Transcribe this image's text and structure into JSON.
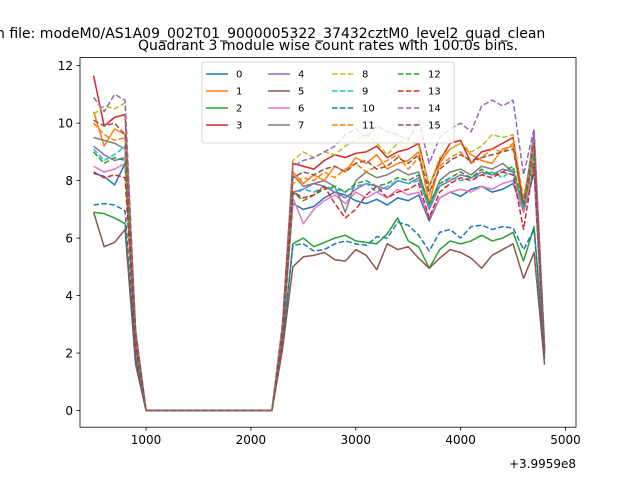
{
  "suptitle": "n file: modeM0/AS1A09_002T01_9000005322_37432cztM0_level2_quad_clean",
  "chart_data": {
    "type": "line",
    "title": "Quadrant 3 module wise count rates with 100.0s bins.",
    "xlabel": "",
    "ylabel": "",
    "x_offset_label": "+3.9959e8",
    "xlim": [
      370,
      5100
    ],
    "ylim": [
      -0.58,
      12.28
    ],
    "xticks": [
      1000,
      2000,
      3000,
      4000,
      5000
    ],
    "xtick_labels": [
      "1000",
      "2000",
      "3000",
      "4000",
      "5000"
    ],
    "yticks": [
      0,
      2,
      4,
      6,
      8,
      10,
      12
    ],
    "ytick_labels": [
      "0",
      "2",
      "4",
      "6",
      "8",
      "10",
      "12"
    ],
    "grid": false,
    "legend_position": "top-center",
    "legend_columns": 4,
    "x": [
      500,
      600,
      700,
      800,
      900,
      1000,
      1100,
      1200,
      1300,
      1400,
      1500,
      1600,
      1700,
      1800,
      1900,
      2000,
      2100,
      2200,
      2300,
      2400,
      2500,
      2600,
      2700,
      2800,
      2900,
      3000,
      3100,
      3200,
      3300,
      3400,
      3500,
      3600,
      3700,
      3800,
      3900,
      4000,
      4100,
      4200,
      4300,
      4400,
      4500,
      4600,
      4700,
      4800
    ],
    "series": [
      {
        "name": "0",
        "color": "#1f77b4",
        "dash": "solid",
        "values": [
          8.25,
          8.15,
          7.85,
          8.6,
          2.1,
          0,
          0,
          0,
          0,
          0,
          0,
          0,
          0,
          0,
          0,
          0,
          0,
          0,
          2.4,
          7.2,
          7.0,
          7.1,
          7.4,
          7.6,
          7.5,
          7.3,
          7.2,
          7.35,
          7.15,
          7.4,
          7.3,
          7.5,
          6.6,
          7.4,
          7.6,
          7.45,
          7.7,
          7.8,
          7.6,
          7.7,
          7.9,
          6.9,
          8.3,
          1.8
        ]
      },
      {
        "name": "1",
        "color": "#ff7f0e",
        "dash": "solid",
        "values": [
          10.4,
          9.2,
          9.8,
          9.6,
          2.6,
          0,
          0,
          0,
          0,
          0,
          0,
          0,
          0,
          0,
          0,
          0,
          0,
          0,
          2.8,
          8.3,
          7.9,
          8.2,
          8.0,
          8.5,
          8.3,
          8.8,
          8.6,
          8.9,
          8.4,
          8.6,
          8.7,
          9.0,
          7.2,
          8.6,
          9.1,
          9.3,
          8.9,
          8.7,
          8.6,
          9.1,
          9.2,
          7.0,
          9.1,
          2.0
        ]
      },
      {
        "name": "2",
        "color": "#2ca02c",
        "dash": "solid",
        "values": [
          6.9,
          6.85,
          6.7,
          6.5,
          1.8,
          0,
          0,
          0,
          0,
          0,
          0,
          0,
          0,
          0,
          0,
          0,
          0,
          0,
          2.2,
          5.8,
          6.0,
          5.7,
          5.85,
          6.0,
          6.1,
          5.9,
          5.85,
          5.8,
          6.15,
          6.7,
          5.9,
          5.7,
          4.95,
          5.6,
          5.9,
          5.8,
          5.9,
          6.1,
          5.9,
          6.0,
          6.2,
          5.2,
          6.4,
          1.9
        ]
      },
      {
        "name": "3",
        "color": "#d62728",
        "dash": "solid",
        "values": [
          11.65,
          9.9,
          10.2,
          10.3,
          2.8,
          0,
          0,
          0,
          0,
          0,
          0,
          0,
          0,
          0,
          0,
          0,
          0,
          0,
          2.9,
          8.6,
          8.5,
          8.4,
          8.7,
          8.9,
          8.8,
          8.95,
          9.0,
          9.2,
          8.8,
          9.0,
          9.1,
          9.3,
          7.8,
          8.7,
          9.3,
          9.4,
          8.6,
          9.0,
          9.1,
          9.3,
          9.5,
          7.1,
          9.6,
          2.2
        ]
      },
      {
        "name": "4",
        "color": "#9467bd",
        "dash": "solid",
        "values": [
          9.2,
          8.9,
          8.7,
          8.8,
          2.3,
          0,
          0,
          0,
          0,
          0,
          0,
          0,
          0,
          0,
          0,
          0,
          0,
          0,
          2.5,
          7.6,
          7.7,
          7.9,
          7.8,
          7.6,
          7.4,
          7.7,
          7.9,
          7.8,
          7.7,
          8.0,
          7.9,
          8.1,
          7.0,
          7.8,
          8.0,
          8.2,
          8.1,
          8.3,
          8.2,
          8.4,
          8.3,
          7.1,
          9.7,
          2.0
        ]
      },
      {
        "name": "5",
        "color": "#8c564b",
        "dash": "solid",
        "values": [
          6.9,
          5.7,
          5.85,
          6.3,
          1.6,
          0,
          0,
          0,
          0,
          0,
          0,
          0,
          0,
          0,
          0,
          0,
          0,
          0,
          2.1,
          5.0,
          5.35,
          5.4,
          5.5,
          5.25,
          5.2,
          5.6,
          5.4,
          4.9,
          5.8,
          5.6,
          5.7,
          5.3,
          4.95,
          5.3,
          5.6,
          5.5,
          5.3,
          4.95,
          5.4,
          5.6,
          5.8,
          4.6,
          5.5,
          1.6
        ]
      },
      {
        "name": "6",
        "color": "#e377c2",
        "dash": "solid",
        "values": [
          8.5,
          8.3,
          8.4,
          8.6,
          2.2,
          0,
          0,
          0,
          0,
          0,
          0,
          0,
          0,
          0,
          0,
          0,
          0,
          0,
          2.4,
          7.4,
          6.5,
          7.0,
          7.3,
          7.5,
          7.2,
          7.6,
          7.4,
          7.6,
          7.4,
          7.7,
          7.5,
          7.6,
          6.7,
          7.4,
          7.6,
          7.7,
          7.6,
          7.8,
          7.7,
          7.9,
          8.0,
          6.9,
          8.5,
          2.0
        ]
      },
      {
        "name": "7",
        "color": "#7f7f7f",
        "dash": "solid",
        "values": [
          9.5,
          9.4,
          9.3,
          9.1,
          2.4,
          0,
          0,
          0,
          0,
          0,
          0,
          0,
          0,
          0,
          0,
          0,
          0,
          0,
          2.6,
          8.2,
          7.8,
          7.9,
          8.0,
          7.8,
          6.9,
          8.0,
          8.3,
          8.1,
          8.2,
          8.4,
          8.2,
          8.3,
          7.1,
          8.0,
          8.3,
          8.4,
          8.2,
          8.5,
          8.4,
          8.6,
          8.3,
          7.0,
          9.0,
          2.1
        ]
      },
      {
        "name": "8",
        "color": "#bcbd22",
        "dash": "dashed",
        "values": [
          10.3,
          10.6,
          10.5,
          10.7,
          2.7,
          0,
          0,
          0,
          0,
          0,
          0,
          0,
          0,
          0,
          0,
          0,
          0,
          0,
          2.9,
          8.7,
          9.0,
          8.8,
          9.0,
          8.9,
          9.2,
          9.4,
          9.6,
          9.3,
          8.9,
          9.3,
          9.5,
          9.2,
          7.8,
          8.8,
          9.1,
          9.3,
          9.0,
          9.2,
          9.6,
          9.5,
          9.6,
          7.3,
          9.4,
          2.2
        ]
      },
      {
        "name": "9",
        "color": "#17becf",
        "dash": "dashed",
        "values": [
          9.1,
          8.7,
          8.9,
          9.2,
          2.4,
          0,
          0,
          0,
          0,
          0,
          0,
          0,
          0,
          0,
          0,
          0,
          0,
          0,
          2.6,
          7.5,
          7.7,
          7.6,
          7.8,
          7.7,
          7.6,
          7.8,
          7.9,
          7.6,
          7.8,
          8.0,
          7.9,
          8.0,
          7.1,
          7.8,
          8.1,
          8.0,
          8.1,
          8.2,
          8.3,
          8.1,
          8.4,
          7.0,
          8.9,
          2.0
        ]
      },
      {
        "name": "10",
        "color": "#1f77b4",
        "dash": "dashed",
        "values": [
          7.15,
          7.2,
          7.15,
          6.95,
          1.8,
          0,
          0,
          0,
          0,
          0,
          0,
          0,
          0,
          0,
          0,
          0,
          0,
          0,
          2.2,
          5.75,
          5.8,
          5.55,
          5.6,
          5.8,
          5.9,
          5.8,
          5.75,
          6.05,
          6.0,
          6.55,
          6.45,
          6.1,
          5.55,
          6.2,
          6.3,
          6.0,
          6.4,
          6.45,
          6.3,
          6.4,
          6.35,
          5.6,
          6.3,
          1.9
        ]
      },
      {
        "name": "11",
        "color": "#ff7f0e",
        "dash": "dashed",
        "values": [
          10.0,
          9.6,
          9.4,
          9.5,
          2.5,
          0,
          0,
          0,
          0,
          0,
          0,
          0,
          0,
          0,
          0,
          0,
          0,
          0,
          2.7,
          7.9,
          8.1,
          8.0,
          8.3,
          8.1,
          8.4,
          8.6,
          8.3,
          8.5,
          8.7,
          8.9,
          8.4,
          8.8,
          7.5,
          8.5,
          8.8,
          9.0,
          8.6,
          8.8,
          9.1,
          9.0,
          9.3,
          7.4,
          9.2,
          2.1
        ]
      },
      {
        "name": "12",
        "color": "#2ca02c",
        "dash": "dashed",
        "values": [
          9.0,
          8.6,
          8.8,
          8.7,
          2.3,
          0,
          0,
          0,
          0,
          0,
          0,
          0,
          0,
          0,
          0,
          0,
          0,
          0,
          2.5,
          7.6,
          7.3,
          7.5,
          7.7,
          7.8,
          7.6,
          7.9,
          8.0,
          7.8,
          7.9,
          8.1,
          8.0,
          8.2,
          7.2,
          7.9,
          8.1,
          8.3,
          8.1,
          8.4,
          8.2,
          8.3,
          8.5,
          7.1,
          8.8,
          2.0
        ]
      },
      {
        "name": "13",
        "color": "#d62728",
        "dash": "dashed",
        "values": [
          8.3,
          8.1,
          8.2,
          8.1,
          2.2,
          0,
          0,
          0,
          0,
          0,
          0,
          0,
          0,
          0,
          0,
          0,
          0,
          0,
          2.4,
          7.6,
          7.4,
          7.5,
          7.8,
          7.2,
          6.7,
          7.0,
          7.5,
          7.8,
          7.4,
          7.6,
          7.7,
          7.9,
          6.7,
          7.6,
          7.9,
          8.1,
          8.0,
          8.2,
          8.1,
          8.3,
          8.2,
          6.3,
          8.6,
          2.0
        ]
      },
      {
        "name": "14",
        "color": "#9467bd",
        "dash": "dashed",
        "values": [
          10.9,
          10.4,
          11.0,
          10.8,
          2.8,
          0,
          0,
          0,
          0,
          0,
          0,
          0,
          0,
          0,
          0,
          0,
          0,
          0,
          3.0,
          8.5,
          8.7,
          8.8,
          9.0,
          9.2,
          9.6,
          9.8,
          9.5,
          9.9,
          9.7,
          9.6,
          9.4,
          10.1,
          8.6,
          9.5,
          9.8,
          10.0,
          9.7,
          10.6,
          10.8,
          10.6,
          10.8,
          8.2,
          9.8,
          2.3
        ]
      },
      {
        "name": "15",
        "color": "#8c564b",
        "dash": "dashed",
        "values": [
          10.1,
          9.9,
          10.0,
          9.6,
          2.6,
          0,
          0,
          0,
          0,
          0,
          0,
          0,
          0,
          0,
          0,
          0,
          0,
          0,
          2.8,
          8.1,
          8.3,
          8.2,
          8.4,
          8.5,
          8.3,
          8.6,
          8.7,
          8.4,
          8.5,
          8.8,
          8.6,
          8.9,
          7.6,
          8.4,
          8.7,
          8.9,
          8.7,
          8.8,
          8.9,
          9.0,
          9.1,
          7.2,
          9.3,
          2.1
        ]
      }
    ]
  }
}
